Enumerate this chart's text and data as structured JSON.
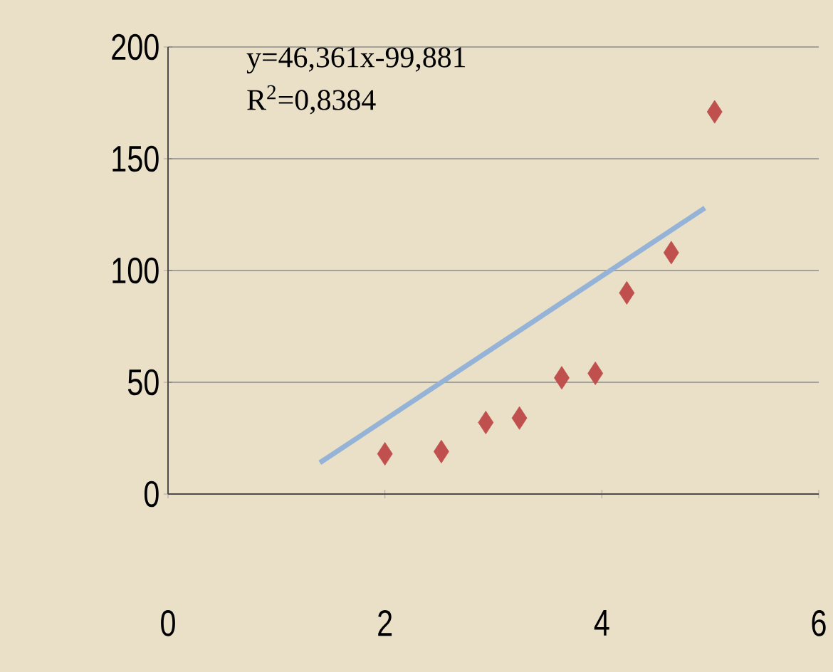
{
  "chart_data": {
    "type": "scatter",
    "x": [
      2.0,
      2.52,
      2.93,
      3.24,
      3.63,
      3.94,
      4.23,
      4.64,
      5.04
    ],
    "series": [
      {
        "color": "#c0504d",
        "marker": "diamond",
        "values": [
          18,
          19,
          32,
          34,
          52,
          54,
          90,
          108,
          171
        ]
      },
      {
        "type": "line",
        "color": "#95b3d7",
        "x": [
          1.4,
          4.95
        ],
        "values": [
          14,
          128
        ]
      }
    ],
    "xlim": [
      0,
      6
    ],
    "ylim": [
      0,
      200
    ],
    "xticks": [
      0,
      2,
      4,
      6
    ],
    "yticks": [
      0,
      50,
      100,
      150,
      200
    ],
    "grid": "y",
    "annotations": [
      "y=46,361x-99,881",
      "R$^{2}$=0,8384"
    ]
  }
}
